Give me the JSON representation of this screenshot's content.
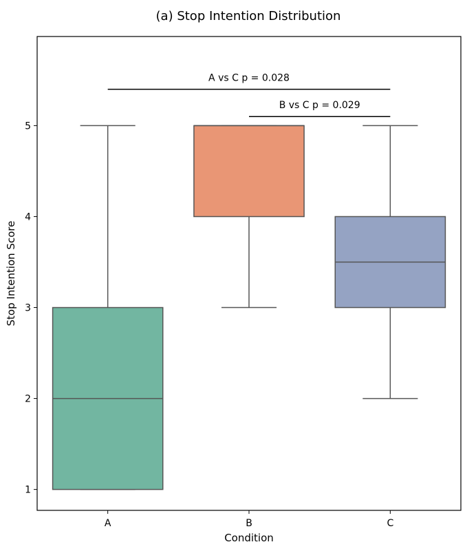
{
  "chart_data": {
    "type": "box",
    "title": "(a) Stop Intention Distribution",
    "xlabel": "Condition",
    "ylabel": "Stop Intention Score",
    "categories": [
      "A",
      "B",
      "C"
    ],
    "ylim": [
      0.77,
      5.98
    ],
    "yticks": [
      1,
      2,
      3,
      4,
      5
    ],
    "grid": false,
    "boxes": [
      {
        "category": "A",
        "whislo": 1,
        "q1": 1,
        "median": 2,
        "q3": 3,
        "whishi": 5,
        "color": "#72b6a1"
      },
      {
        "category": "B",
        "whislo": 3,
        "q1": 4,
        "median": 5,
        "q3": 5,
        "whishi": 5,
        "color": "#e99675"
      },
      {
        "category": "C",
        "whislo": 2,
        "q1": 3,
        "median": 3.5,
        "q3": 4,
        "whishi": 5,
        "color": "#95a3c3"
      }
    ],
    "annotations": [
      {
        "text": "A vs C p = 0.028",
        "from": "A",
        "to": "C",
        "y": 5.4
      },
      {
        "text": "B vs C p = 0.029",
        "from": "B",
        "to": "C",
        "y": 5.1
      }
    ]
  }
}
